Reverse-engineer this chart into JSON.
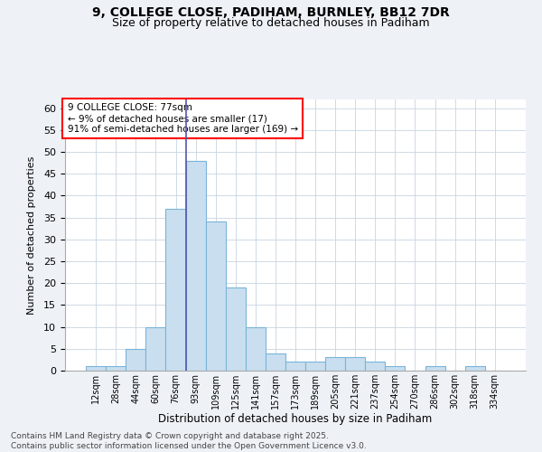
{
  "title1": "9, COLLEGE CLOSE, PADIHAM, BURNLEY, BB12 7DR",
  "title2": "Size of property relative to detached houses in Padiham",
  "xlabel": "Distribution of detached houses by size in Padiham",
  "ylabel": "Number of detached properties",
  "categories": [
    "12sqm",
    "28sqm",
    "44sqm",
    "60sqm",
    "76sqm",
    "93sqm",
    "109sqm",
    "125sqm",
    "141sqm",
    "157sqm",
    "173sqm",
    "189sqm",
    "205sqm",
    "221sqm",
    "237sqm",
    "254sqm",
    "270sqm",
    "286sqm",
    "302sqm",
    "318sqm",
    "334sqm"
  ],
  "values": [
    1,
    1,
    5,
    10,
    37,
    48,
    34,
    19,
    10,
    4,
    2,
    2,
    3,
    3,
    2,
    1,
    0,
    1,
    0,
    1,
    0
  ],
  "bar_color": "#c9dff0",
  "bar_edge_color": "#7ab4d8",
  "ylim": [
    0,
    62
  ],
  "yticks": [
    0,
    5,
    10,
    15,
    20,
    25,
    30,
    35,
    40,
    45,
    50,
    55,
    60
  ],
  "annotation_title": "9 COLLEGE CLOSE: 77sqm",
  "annotation_line1": "← 9% of detached houses are smaller (17)",
  "annotation_line2": "91% of semi-detached houses are larger (169) →",
  "footer1": "Contains HM Land Registry data © Crown copyright and database right 2025.",
  "footer2": "Contains public sector information licensed under the Open Government Licence v3.0.",
  "bg_color": "#eef2f7",
  "plot_bg_color": "#ffffff",
  "vline_x_index": 4,
  "vline_color": "#5555aa"
}
